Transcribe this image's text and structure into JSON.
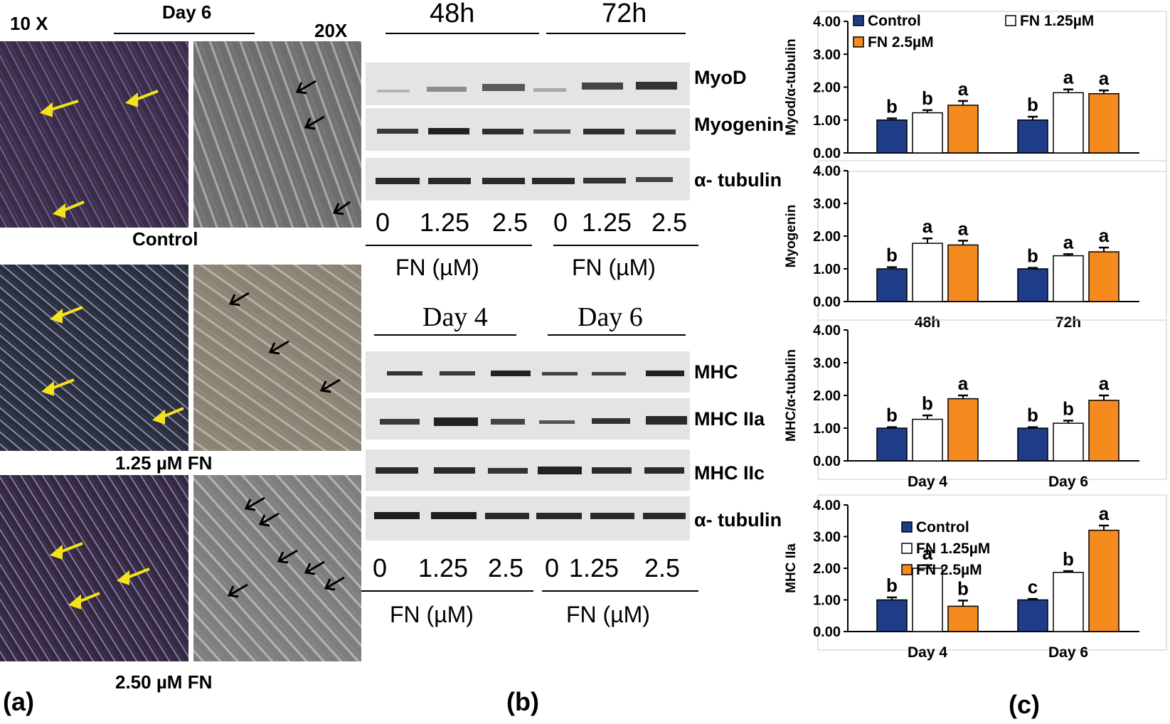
{
  "panel_a": {
    "tag": "(a)",
    "mag_left": "10 X",
    "mag_right": "20X",
    "day_label": "Day 6",
    "rows": [
      {
        "label": "Control"
      },
      {
        "label": "1.25 µM FN"
      },
      {
        "label": "2.50 µM FN"
      }
    ]
  },
  "panel_b": {
    "tag": "(b)",
    "top": {
      "time_left": "48h",
      "time_right": "72h",
      "blots": [
        "MyoD",
        "Myogenin",
        "α- tubulin"
      ],
      "lanes": [
        "0",
        "1.25",
        "2.5",
        "0",
        "1.25",
        "2.5"
      ],
      "group_label_left": "FN (µM)",
      "group_label_right": "FN (µM)"
    },
    "bottom": {
      "time_left": "Day 4",
      "time_right": "Day 6",
      "blots": [
        "MHC",
        "MHC IIa",
        "MHC IIc",
        "α- tubulin"
      ],
      "lanes": [
        "0",
        "1.25",
        "2.5",
        "0",
        "1.25",
        "2.5"
      ],
      "group_label_left": "FN (µM)",
      "group_label_right": "FN (µM)"
    }
  },
  "panel_c": {
    "tag": "(c)",
    "colors": {
      "control": "#1f3c88",
      "fn125": "#ffffff",
      "fn25": "#f58a1f"
    },
    "legend_top": [
      "Control",
      "FN 1.25µM",
      "FN 2.5µM"
    ],
    "legend_bottom": [
      "Control",
      "FN 1.25µM",
      "FN 2.5µM"
    ]
  },
  "chart_data": [
    {
      "type": "bar",
      "ylabel": "Myod/α-tubulin",
      "ylim": [
        0,
        4
      ],
      "yticks": [
        "0.00",
        "1.00",
        "2.00",
        "3.00",
        "4.00"
      ],
      "categories": [
        "",
        ""
      ],
      "series": [
        {
          "name": "Control",
          "values": [
            1.0,
            1.0
          ],
          "errors": [
            0.05,
            0.1
          ],
          "letters": [
            "b",
            "b"
          ]
        },
        {
          "name": "FN 1.25µM",
          "values": [
            1.22,
            1.83
          ],
          "errors": [
            0.08,
            0.1
          ],
          "letters": [
            "b",
            "a"
          ]
        },
        {
          "name": "FN 2.5µM",
          "values": [
            1.45,
            1.8
          ],
          "errors": [
            0.13,
            0.1
          ],
          "letters": [
            "a",
            "a"
          ]
        }
      ]
    },
    {
      "type": "bar",
      "ylabel": "Myogenin",
      "ylim": [
        0,
        4
      ],
      "yticks": [
        "0.00",
        "1.00",
        "2.00",
        "3.00",
        "4.00"
      ],
      "categories": [
        "48h",
        "72h"
      ],
      "series": [
        {
          "name": "Control",
          "values": [
            1.0,
            1.0
          ],
          "errors": [
            0.05,
            0.03
          ],
          "letters": [
            "b",
            "b"
          ]
        },
        {
          "name": "FN 1.25µM",
          "values": [
            1.78,
            1.4
          ],
          "errors": [
            0.15,
            0.05
          ],
          "letters": [
            "a",
            "a"
          ]
        },
        {
          "name": "FN 2.5µM",
          "values": [
            1.73,
            1.52
          ],
          "errors": [
            0.13,
            0.13
          ],
          "letters": [
            "a",
            "a"
          ]
        }
      ]
    },
    {
      "type": "bar",
      "ylabel": "MHC/α-tubulin",
      "ylim": [
        0,
        4
      ],
      "yticks": [
        "0.00",
        "1.00",
        "2.00",
        "3.00",
        "4.00"
      ],
      "categories": [
        "Day 4",
        "Day 6"
      ],
      "series": [
        {
          "name": "Control",
          "values": [
            1.0,
            1.0
          ],
          "errors": [
            0.03,
            0.03
          ],
          "letters": [
            "b",
            "b"
          ]
        },
        {
          "name": "FN 1.25µM",
          "values": [
            1.27,
            1.15
          ],
          "errors": [
            0.12,
            0.08
          ],
          "letters": [
            "b",
            "b"
          ]
        },
        {
          "name": "FN 2.5µM",
          "values": [
            1.9,
            1.85
          ],
          "errors": [
            0.1,
            0.15
          ],
          "letters": [
            "a",
            "a"
          ]
        }
      ]
    },
    {
      "type": "bar",
      "ylabel": "MHC IIa",
      "ylim": [
        0,
        4
      ],
      "yticks": [
        "0.00",
        "1.00",
        "2.00",
        "3.00",
        "4.00"
      ],
      "categories": [
        "Day 4",
        "Day 6"
      ],
      "series": [
        {
          "name": "Control",
          "values": [
            1.0,
            1.0
          ],
          "errors": [
            0.08,
            0.03
          ],
          "letters": [
            "b",
            "c"
          ]
        },
        {
          "name": "FN 1.25µM",
          "values": [
            2.0,
            1.87
          ],
          "errors": [
            0.1,
            0.04
          ],
          "letters": [
            "a",
            "b"
          ]
        },
        {
          "name": "FN 2.5µM",
          "values": [
            0.8,
            3.2
          ],
          "errors": [
            0.18,
            0.15
          ],
          "letters": [
            "b",
            "a"
          ]
        }
      ]
    }
  ]
}
